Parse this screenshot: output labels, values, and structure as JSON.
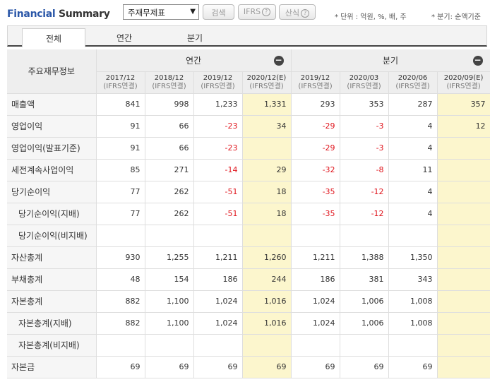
{
  "header": {
    "title_part1": "Financial",
    "title_part2": "Summary",
    "select_value": "주재무제표",
    "search_label": "검색",
    "ifrs_label": "IFRS",
    "calc_label": "산식",
    "help_glyph": "?",
    "unit_note": "* 단위 : 억원, %, 배, 주",
    "basis_note": "* 분기: 순액기준"
  },
  "tabs": [
    "전체",
    "연간",
    "분기"
  ],
  "table": {
    "row_header_title": "주요재무정보",
    "group_annual": "연간",
    "group_quarter": "분기",
    "collapse_glyph": "−",
    "columns": [
      {
        "period": "2017/12",
        "basis": "(IFRS연결)"
      },
      {
        "period": "2018/12",
        "basis": "(IFRS연결)"
      },
      {
        "period": "2019/12",
        "basis": "(IFRS연결)"
      },
      {
        "period": "2020/12(E)",
        "basis": "(IFRS연결)"
      },
      {
        "period": "2019/12",
        "basis": "(IFRS연결)"
      },
      {
        "period": "2020/03",
        "basis": "(IFRS연결)"
      },
      {
        "period": "2020/06",
        "basis": "(IFRS연결)"
      },
      {
        "period": "2020/09(E)",
        "basis": "(IFRS연결)"
      }
    ],
    "rows": [
      {
        "label": "매출액",
        "values": [
          "841",
          "998",
          "1,233",
          "1,331",
          "293",
          "353",
          "287",
          "357"
        ]
      },
      {
        "label": "영업이익",
        "values": [
          "91",
          "66",
          "-23",
          "34",
          "-29",
          "-3",
          "4",
          "12"
        ]
      },
      {
        "label": "영업이익(발표기준)",
        "values": [
          "91",
          "66",
          "-23",
          "",
          "-29",
          "-3",
          "4",
          ""
        ]
      },
      {
        "label": "세전계속사업이익",
        "values": [
          "85",
          "271",
          "-14",
          "29",
          "-32",
          "-8",
          "11",
          ""
        ]
      },
      {
        "label": "당기순이익",
        "values": [
          "77",
          "262",
          "-51",
          "18",
          "-35",
          "-12",
          "4",
          ""
        ]
      },
      {
        "label": "당기순이익(지배)",
        "values": [
          "77",
          "262",
          "-51",
          "18",
          "-35",
          "-12",
          "4",
          ""
        ]
      },
      {
        "label": "당기순이익(비지배)",
        "values": [
          "",
          "",
          "",
          "",
          "",
          "",
          "",
          ""
        ]
      },
      {
        "label": "자산총계",
        "values": [
          "930",
          "1,255",
          "1,211",
          "1,260",
          "1,211",
          "1,388",
          "1,350",
          ""
        ]
      },
      {
        "label": "부채총계",
        "values": [
          "48",
          "154",
          "186",
          "244",
          "186",
          "381",
          "343",
          ""
        ]
      },
      {
        "label": "자본총계",
        "values": [
          "882",
          "1,100",
          "1,024",
          "1,016",
          "1,024",
          "1,006",
          "1,008",
          ""
        ]
      },
      {
        "label": "자본총계(지배)",
        "values": [
          "882",
          "1,100",
          "1,024",
          "1,016",
          "1,024",
          "1,006",
          "1,008",
          ""
        ]
      },
      {
        "label": "자본총계(비지배)",
        "values": [
          "",
          "",
          "",
          "",
          "",
          "",
          "",
          ""
        ]
      },
      {
        "label": "자본금",
        "values": [
          "69",
          "69",
          "69",
          "69",
          "69",
          "69",
          "69",
          ""
        ]
      }
    ]
  },
  "colors": {
    "title_blue": "#2b57a8",
    "negative_red": "#e0151d",
    "estimate_highlight": "#fcf6cd"
  }
}
